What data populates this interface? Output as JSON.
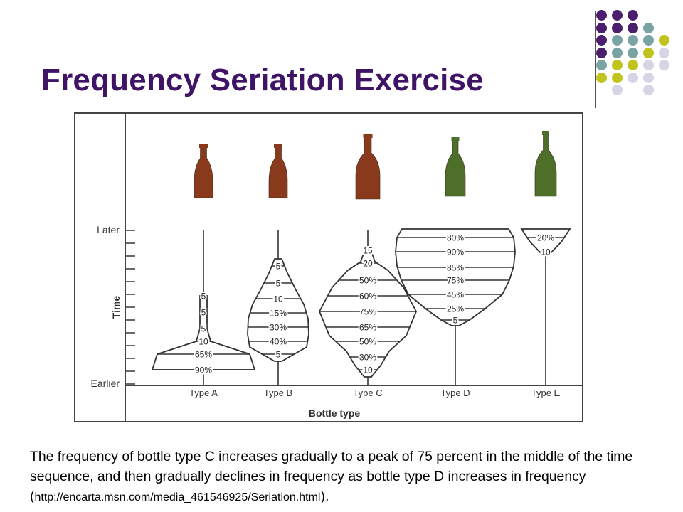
{
  "slide": {
    "title": "Frequency Seriation Exercise"
  },
  "palette": {
    "title_color": "#3f1466",
    "dot_purple": "#4b1e6e",
    "dot_teal": "#7aa3a3",
    "dot_yellow": "#c2c41e",
    "dot_lavender": "#d5d5e5",
    "bottle_brown": "#8a3a1c",
    "bottle_green": "#4e6f2a"
  },
  "diagram": {
    "axis_title_y": "Time",
    "axis_title_x": "Bottle type",
    "y_top_label": "Later",
    "y_bottom_label": "Earlier",
    "types": [
      {
        "label": "Type A",
        "bottle_color": "brown",
        "bands": [
          {
            "text": "5"
          },
          {
            "text": "5"
          },
          {
            "text": "5"
          },
          {
            "text": "10"
          },
          {
            "text": "65%"
          },
          {
            "text": "90%"
          }
        ]
      },
      {
        "label": "Type B",
        "bottle_color": "brown",
        "bands": [
          {
            "text": "5"
          },
          {
            "text": "5"
          },
          {
            "text": "10"
          },
          {
            "text": "15%"
          },
          {
            "text": "30%"
          },
          {
            "text": "40%"
          },
          {
            "text": "5"
          }
        ]
      },
      {
        "label": "Type C",
        "bottle_color": "brown",
        "bands": [
          {
            "text": "15"
          },
          {
            "text": "20"
          },
          {
            "text": "50%"
          },
          {
            "text": "60%"
          },
          {
            "text": "75%"
          },
          {
            "text": "65%"
          },
          {
            "text": "50%"
          },
          {
            "text": "30%"
          },
          {
            "text": "10"
          }
        ]
      },
      {
        "label": "Type D",
        "bottle_color": "green",
        "bands": [
          {
            "text": "80%"
          },
          {
            "text": "90%"
          },
          {
            "text": "85%"
          },
          {
            "text": "75%"
          },
          {
            "text": "45%"
          },
          {
            "text": "25%"
          },
          {
            "text": "5"
          }
        ]
      },
      {
        "label": "Type E",
        "bottle_color": "green",
        "bands": [
          {
            "text": "20%"
          },
          {
            "text": "10"
          }
        ]
      }
    ]
  },
  "caption": {
    "text": "The frequency of bottle type C increases gradually to a peak of 75 percent in the middle of the time sequence, and then gradually declines in frequency as bottle type D increases in frequency (",
    "url": "http://encarta.msn.com/media_461546925/Seriation.html",
    "tail": ")."
  }
}
